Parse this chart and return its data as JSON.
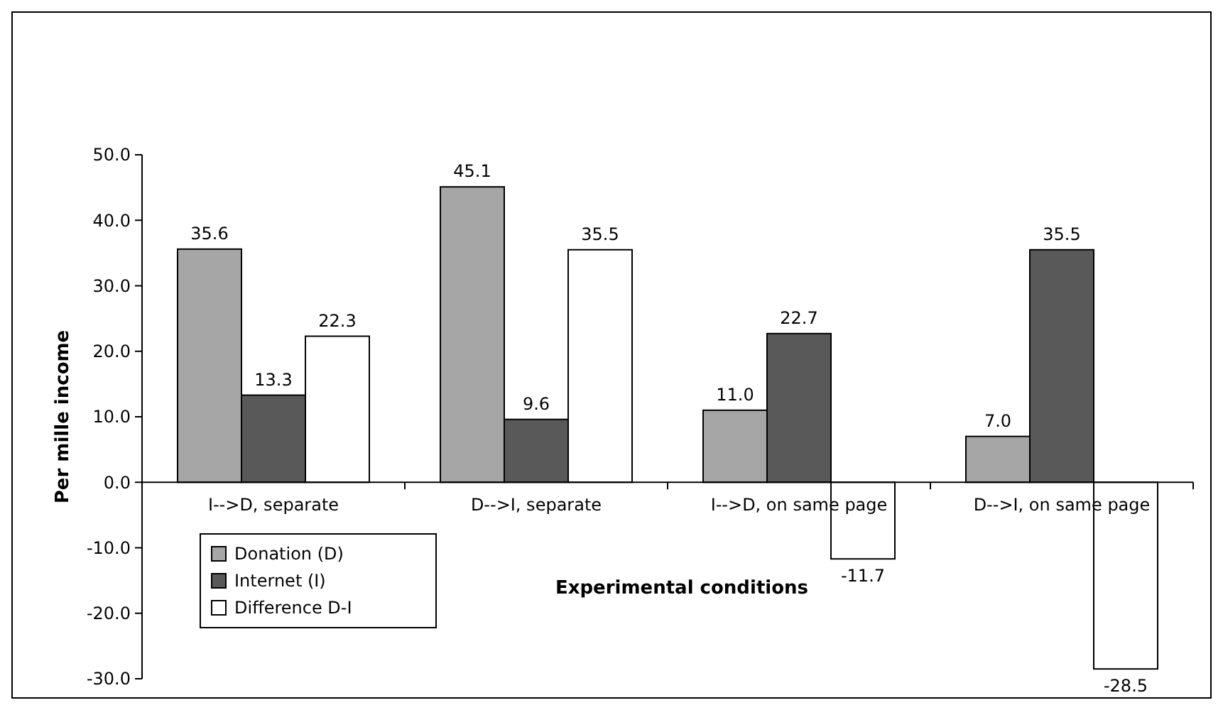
{
  "chart_data": {
    "type": "bar",
    "xlabel": "Experimental conditions",
    "ylabel": "Per mille income",
    "categories": [
      "I-->D, separate",
      "D-->I, separate",
      "I-->D, on same page",
      "D-->I, on same page"
    ],
    "series": [
      {
        "name": "Donation (D)",
        "color": "#a6a6a6",
        "values": [
          35.6,
          45.1,
          11.0,
          7.0
        ],
        "value_labels": [
          "35.6",
          "45.1",
          "11.0",
          "7.0"
        ]
      },
      {
        "name": "Internet (I)",
        "color": "#595959",
        "values": [
          13.3,
          9.6,
          22.7,
          35.5
        ],
        "value_labels": [
          "13.3",
          "9.6",
          "22.7",
          "35.5"
        ]
      },
      {
        "name": "Difference D-I",
        "color": "#ffffff",
        "values": [
          22.3,
          35.5,
          -11.7,
          -28.5
        ],
        "value_labels": [
          "22.3",
          "35.5",
          "-11.7",
          "-28.5"
        ]
      }
    ],
    "ylim": [
      -30,
      50
    ],
    "yticks": [
      {
        "value": -30,
        "label": "-30.0"
      },
      {
        "value": -20,
        "label": "-20.0"
      },
      {
        "value": -10,
        "label": "-10.0"
      },
      {
        "value": 0,
        "label": "0.0"
      },
      {
        "value": 10,
        "label": "10.0"
      },
      {
        "value": 20,
        "label": "20.0"
      },
      {
        "value": 30,
        "label": "30.0"
      },
      {
        "value": 40,
        "label": "40.0"
      },
      {
        "value": 50,
        "label": "50.0"
      }
    ],
    "grid": false,
    "legend": "bottom left"
  }
}
